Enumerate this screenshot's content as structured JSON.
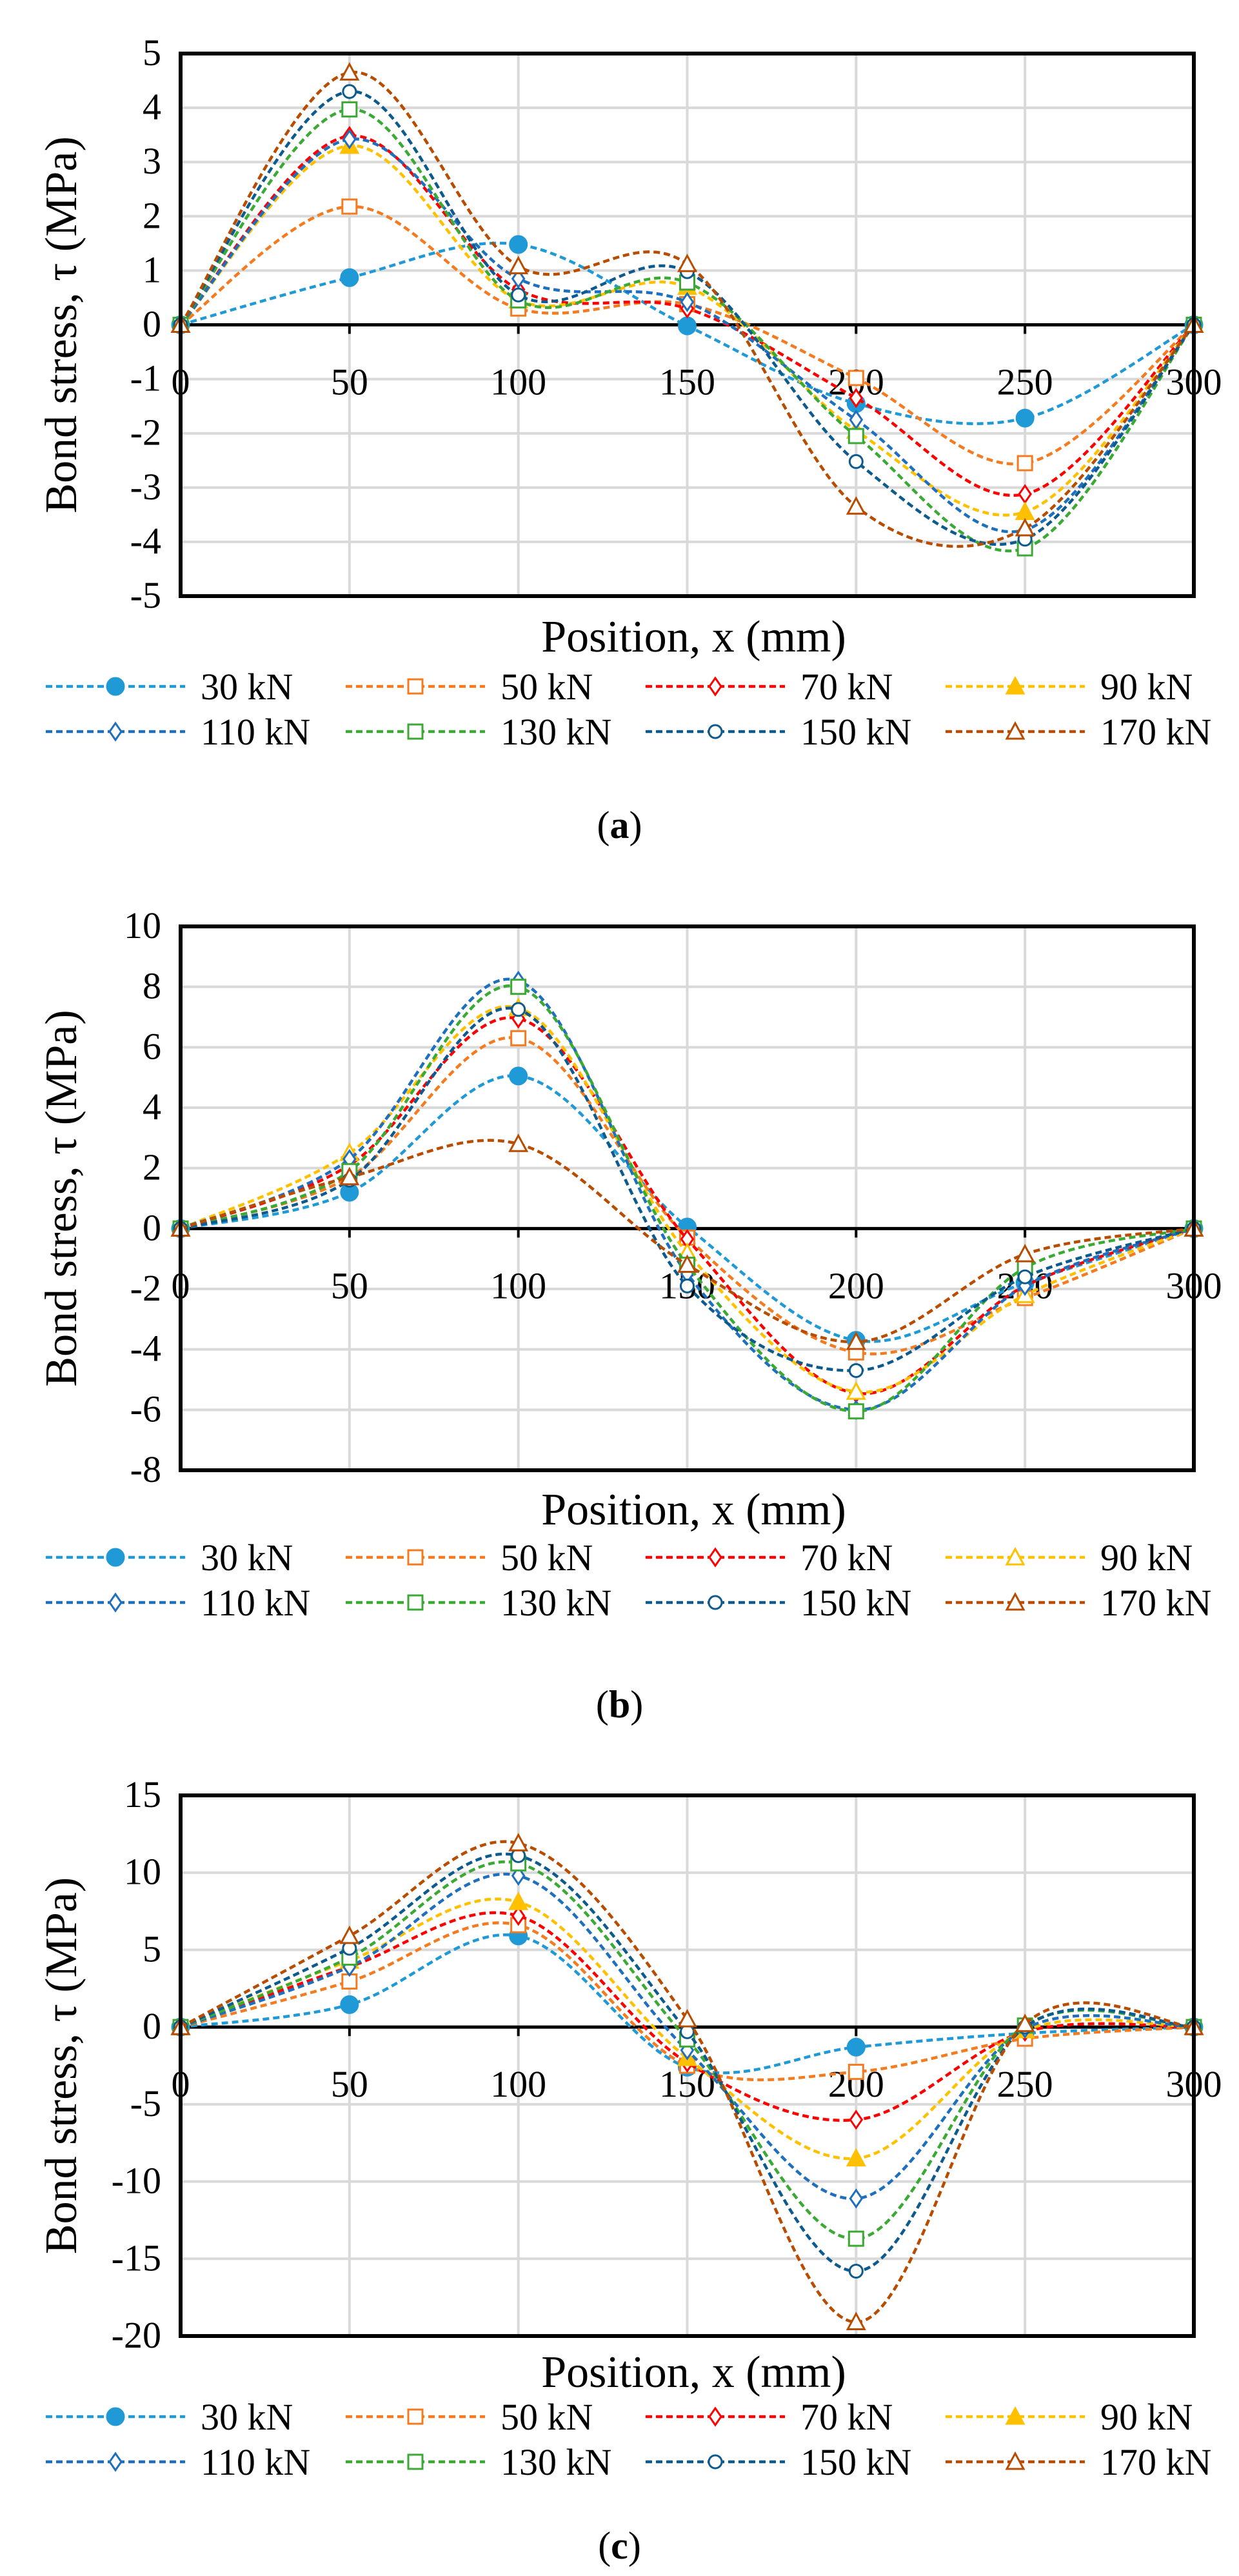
{
  "legend_series": [
    {
      "name": "30 kN",
      "color": "#1f9ad6",
      "marker": "circle-filled"
    },
    {
      "name": "50 kN",
      "color": "#f47b20",
      "marker": "square-open"
    },
    {
      "name": "70 kN",
      "color": "#ff0000",
      "marker": "diamond-open"
    },
    {
      "name": "90 kN",
      "color": "#ffc000",
      "marker": "triangle-filled"
    },
    {
      "name": "110 kN",
      "color": "#1f6fbf",
      "marker": "diamond-open"
    },
    {
      "name": "130 kN",
      "color": "#3aaa35",
      "marker": "square-open"
    },
    {
      "name": "150 kN",
      "color": "#0d5a8f",
      "marker": "circle-open"
    },
    {
      "name": "170 kN",
      "color": "#b84c00",
      "marker": "triangle-open"
    }
  ],
  "chart_data": [
    {
      "type": "line",
      "panel_label": "a",
      "xlabel": "Position, x (mm)",
      "ylabel": "Bond stress, τ (MPa)",
      "x": [
        0,
        50,
        100,
        150,
        200,
        250,
        300
      ],
      "xlim": [
        0,
        300
      ],
      "ylim": [
        -5,
        5
      ],
      "xticks": [
        0,
        50,
        100,
        150,
        200,
        250,
        300
      ],
      "yticks": [
        -5,
        -4,
        -3,
        -2,
        -1,
        0,
        1,
        2,
        3,
        4,
        5
      ],
      "grid": true,
      "legend": "bottom",
      "series": [
        {
          "name": "30 kN",
          "values": [
            0,
            0.87,
            1.48,
            -0.02,
            -1.45,
            -1.72,
            0
          ]
        },
        {
          "name": "50 kN",
          "values": [
            0,
            2.18,
            0.3,
            0.38,
            -0.98,
            -2.55,
            0
          ]
        },
        {
          "name": "70 kN",
          "values": [
            0,
            3.48,
            0.65,
            0.3,
            -1.35,
            -3.12,
            0
          ]
        },
        {
          "name": "90 kN",
          "values": [
            0,
            3.3,
            0.45,
            0.7,
            -1.95,
            -3.45,
            0
          ]
        },
        {
          "name": "110 kN",
          "values": [
            0,
            3.42,
            0.85,
            0.42,
            -1.75,
            -3.78,
            0
          ]
        },
        {
          "name": "130 kN",
          "values": [
            0,
            3.97,
            0.45,
            0.78,
            -2.05,
            -4.12,
            0
          ]
        },
        {
          "name": "150 kN",
          "values": [
            0,
            4.3,
            0.55,
            0.98,
            -2.52,
            -3.95,
            0
          ]
        },
        {
          "name": "170 kN",
          "values": [
            0,
            4.65,
            1.08,
            1.12,
            -3.35,
            -3.75,
            0
          ]
        }
      ]
    },
    {
      "type": "line",
      "panel_label": "b",
      "xlabel": "Position, x (mm)",
      "ylabel": "Bond stress, τ (MPa)",
      "x": [
        0,
        50,
        100,
        150,
        200,
        250,
        300
      ],
      "xlim": [
        0,
        300
      ],
      "ylim": [
        -8,
        10
      ],
      "xticks": [
        0,
        50,
        100,
        150,
        200,
        250,
        300
      ],
      "yticks": [
        -8,
        -6,
        -4,
        -2,
        0,
        2,
        4,
        6,
        8,
        10
      ],
      "grid": true,
      "legend": "bottom",
      "series": [
        {
          "name": "30 kN",
          "values": [
            0,
            1.2,
            5.05,
            0.05,
            -3.7,
            -1.8,
            0
          ]
        },
        {
          "name": "50 kN",
          "values": [
            0,
            1.7,
            6.3,
            -0.3,
            -4.1,
            -2.3,
            0
          ]
        },
        {
          "name": "70 kN",
          "values": [
            0,
            2.1,
            6.95,
            -0.35,
            -5.45,
            -1.9,
            0
          ]
        },
        {
          "name": "90 kN",
          "values": [
            0,
            2.5,
            7.3,
            -0.8,
            -5.4,
            -2.2,
            0
          ]
        },
        {
          "name": "110 kN",
          "values": [
            0,
            2.3,
            8.2,
            -1.5,
            -6.0,
            -1.9,
            0
          ]
        },
        {
          "name": "130 kN",
          "values": [
            0,
            1.9,
            8.0,
            -1.2,
            -6.05,
            -1.3,
            0
          ]
        },
        {
          "name": "150 kN",
          "values": [
            0,
            1.6,
            7.25,
            -1.9,
            -4.7,
            -1.6,
            0
          ]
        },
        {
          "name": "170 kN",
          "values": [
            0,
            1.7,
            2.8,
            -1.2,
            -3.75,
            -0.85,
            0
          ]
        }
      ]
    },
    {
      "type": "line",
      "panel_label": "c",
      "xlabel": "Position, x (mm)",
      "ylabel": "Bond stress, τ (MPa)",
      "x": [
        0,
        50,
        100,
        150,
        200,
        250,
        300
      ],
      "xlim": [
        0,
        300
      ],
      "ylim": [
        -20,
        15
      ],
      "xticks": [
        0,
        50,
        100,
        150,
        200,
        250,
        300
      ],
      "yticks": [
        -20,
        -15,
        -10,
        -5,
        0,
        5,
        10,
        15
      ],
      "grid": true,
      "legend": "bottom",
      "series": [
        {
          "name": "30 kN",
          "values": [
            0,
            1.45,
            5.9,
            -2.6,
            -1.3,
            -0.4,
            0
          ]
        },
        {
          "name": "50 kN",
          "values": [
            0,
            2.95,
            6.6,
            -2.5,
            -2.9,
            -0.75,
            0
          ]
        },
        {
          "name": "70 kN",
          "values": [
            0,
            3.9,
            7.2,
            -2.3,
            -6.0,
            -0.3,
            0
          ]
        },
        {
          "name": "90 kN",
          "values": [
            0,
            4.3,
            8.1,
            -2.0,
            -8.5,
            -0.2,
            0
          ]
        },
        {
          "name": "110 kN",
          "values": [
            0,
            3.9,
            9.8,
            -1.5,
            -11.1,
            -0.1,
            0
          ]
        },
        {
          "name": "130 kN",
          "values": [
            0,
            4.5,
            10.6,
            -0.8,
            -13.7,
            0.1,
            0
          ]
        },
        {
          "name": "150 kN",
          "values": [
            0,
            5.1,
            11.1,
            -0.3,
            -15.8,
            0,
            0
          ]
        },
        {
          "name": "170 kN",
          "values": [
            0,
            5.9,
            11.9,
            0.5,
            -19.1,
            0.2,
            0
          ]
        }
      ]
    }
  ]
}
